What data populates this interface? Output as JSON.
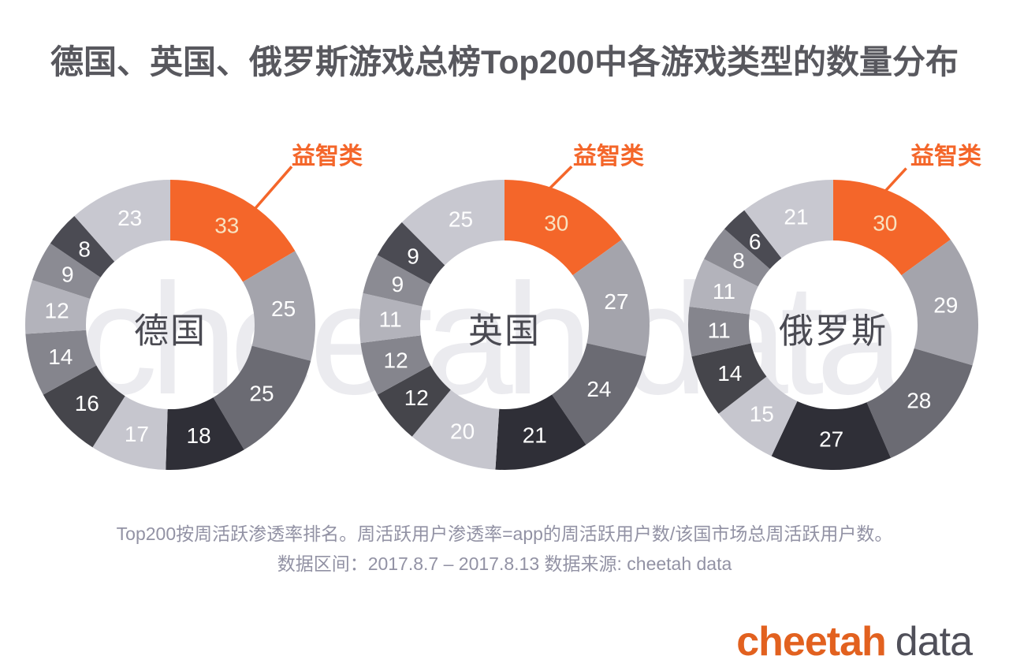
{
  "title": "德国、英国、俄罗斯游戏总榜Top200中各游戏类型的数量分布",
  "watermark": {
    "text": "cheetah data",
    "color": "#EBEBEF"
  },
  "footnote": {
    "line1": "Top200按周活跃渗透率排名。周活跃用户渗透率=app的周活跃用户数/该国市场总周活跃用户数。",
    "line2": "数据区间：2017.8.7 – 2017.8.13 数据来源: cheetah data"
  },
  "brand": {
    "cheetah": "cheetah",
    "data": "data"
  },
  "colors": {
    "accent": "#F4662A",
    "palette": [
      "#F4662A",
      "#A4A4AC",
      "#6B6B73",
      "#2F2F37",
      "#C6C6CE",
      "#45454B",
      "#85858D",
      "#B3B3BB",
      "#8B8B93",
      "#4B4B53",
      "#C8C8D0"
    ],
    "title": "#58585E",
    "footnote": "#9292A4",
    "center_label": "#4A4A52",
    "value_label": "#FFFFFF",
    "value_label_on_accent": "#F8E2C0",
    "logo_cheetah": "#E2611F",
    "logo_data": "#50505A"
  },
  "chart_data": {
    "type": "donut",
    "direction": "clockwise",
    "start": "top",
    "total_per_chart": 200,
    "highlight_label": "益智类",
    "charts": [
      {
        "center_label": "德国",
        "values": [
          33,
          25,
          25,
          18,
          17,
          16,
          14,
          12,
          9,
          8,
          23
        ]
      },
      {
        "center_label": "英国",
        "values": [
          30,
          27,
          24,
          21,
          20,
          12,
          12,
          11,
          9,
          9,
          25
        ]
      },
      {
        "center_label": "俄罗斯",
        "values": [
          30,
          29,
          28,
          27,
          15,
          14,
          11,
          11,
          8,
          6,
          21
        ]
      }
    ]
  }
}
